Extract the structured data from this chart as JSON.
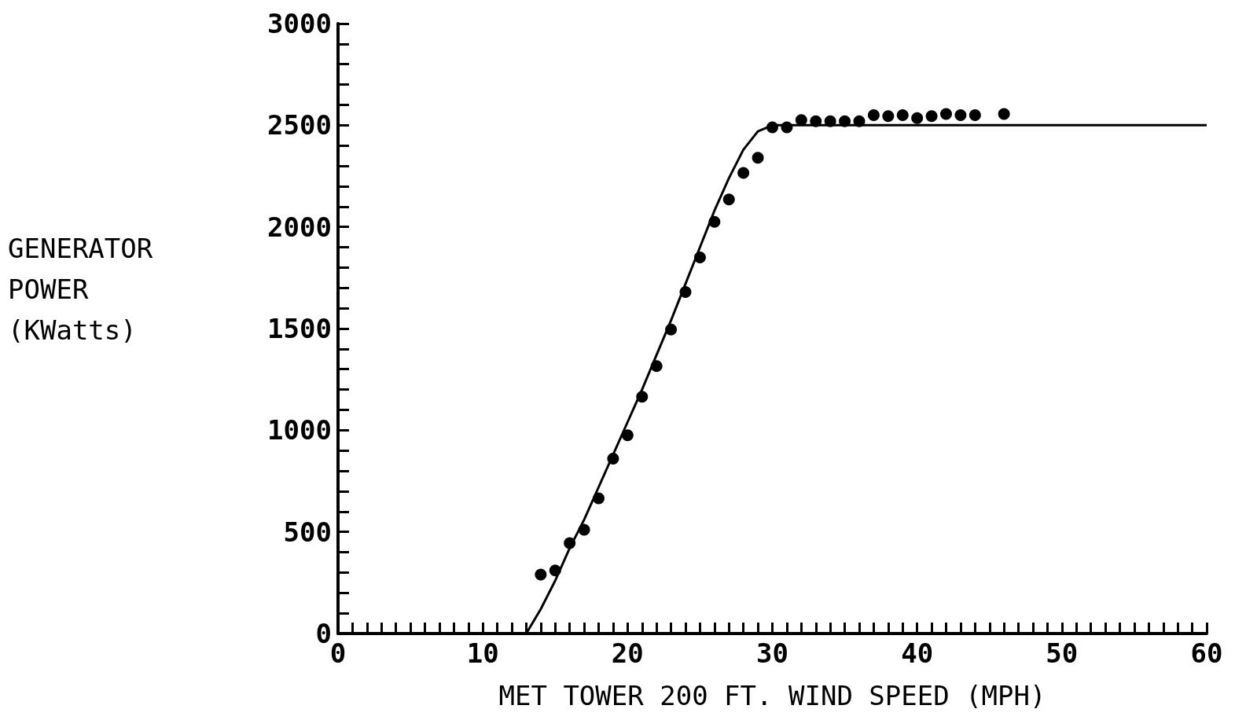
{
  "chart_data": {
    "type": "scatter",
    "xlabel": "MET TOWER 200 FT. WIND SPEED (MPH)",
    "ylabel": "GENERATOR POWER (KWatts)",
    "xlim": [
      0,
      60
    ],
    "ylim": [
      0,
      3000
    ],
    "xticks": [
      0,
      {
        "value": 1,
        "label": null
      },
      {
        "value": 2,
        "label": null
      },
      {
        "value": 3,
        "label": null
      },
      {
        "value": 4,
        "label": null
      },
      {
        "value": 5,
        "label": null
      },
      {
        "value": 6,
        "label": null
      },
      {
        "value": 7,
        "label": null
      },
      {
        "value": 8,
        "label": null
      },
      {
        "value": 9,
        "label": null
      },
      10,
      {
        "value": 11,
        "label": null
      },
      {
        "value": 12,
        "label": null
      },
      {
        "value": 13,
        "label": null
      },
      {
        "value": 14,
        "label": null
      },
      {
        "value": 15,
        "label": null
      },
      {
        "value": 16,
        "label": null
      },
      {
        "value": 17,
        "label": null
      },
      {
        "value": 18,
        "label": null
      },
      {
        "value": 19,
        "label": null
      },
      20,
      {
        "value": 21,
        "label": null
      },
      {
        "value": 22,
        "label": null
      },
      {
        "value": 23,
        "label": null
      },
      {
        "value": 24,
        "label": null
      },
      {
        "value": 25,
        "label": null
      },
      {
        "value": 26,
        "label": null
      },
      {
        "value": 27,
        "label": null
      },
      {
        "value": 28,
        "label": null
      },
      {
        "value": 29,
        "label": null
      },
      30,
      {
        "value": 31,
        "label": null
      },
      {
        "value": 32,
        "label": null
      },
      {
        "value": 33,
        "label": null
      },
      {
        "value": 34,
        "label": null
      },
      {
        "value": 35,
        "label": null
      },
      {
        "value": 36,
        "label": null
      },
      {
        "value": 37,
        "label": null
      },
      {
        "value": 38,
        "label": null
      },
      {
        "value": 39,
        "label": null
      },
      40,
      {
        "value": 41,
        "label": null
      },
      {
        "value": 42,
        "label": null
      },
      {
        "value": 43,
        "label": null
      },
      {
        "value": 44,
        "label": null
      },
      {
        "value": 45,
        "label": null
      },
      {
        "value": 46,
        "label": null
      },
      {
        "value": 47,
        "label": null
      },
      {
        "value": 48,
        "label": null
      },
      {
        "value": 49,
        "label": null
      },
      50,
      {
        "value": 51,
        "label": null
      },
      {
        "value": 52,
        "label": null
      },
      {
        "value": 53,
        "label": null
      },
      {
        "value": 54,
        "label": null
      },
      {
        "value": 55,
        "label": null
      },
      {
        "value": 56,
        "label": null
      },
      {
        "value": 57,
        "label": null
      },
      {
        "value": 58,
        "label": null
      },
      {
        "value": 59,
        "label": null
      },
      60
    ],
    "yticks": [
      0,
      {
        "value": 100,
        "label": null
      },
      {
        "value": 200,
        "label": null
      },
      {
        "value": 300,
        "label": null
      },
      {
        "value": 400,
        "label": null
      },
      500,
      {
        "value": 600,
        "label": null
      },
      {
        "value": 700,
        "label": null
      },
      {
        "value": 800,
        "label": null
      },
      {
        "value": 900,
        "label": null
      },
      1000,
      {
        "value": 1100,
        "label": null
      },
      {
        "value": 1200,
        "label": null
      },
      {
        "value": 1300,
        "label": null
      },
      {
        "value": 1400,
        "label": null
      },
      1500,
      {
        "value": 1600,
        "label": null
      },
      {
        "value": 1700,
        "label": null
      },
      {
        "value": 1800,
        "label": null
      },
      {
        "value": 1900,
        "label": null
      },
      2000,
      {
        "value": 2100,
        "label": null
      },
      {
        "value": 2200,
        "label": null
      },
      {
        "value": 2300,
        "label": null
      },
      {
        "value": 2400,
        "label": null
      },
      2500,
      {
        "value": 2600,
        "label": null
      },
      {
        "value": 2700,
        "label": null
      },
      {
        "value": 2800,
        "label": null
      },
      {
        "value": 2900,
        "label": null
      },
      3000
    ],
    "grid": false,
    "marker": "circle",
    "series": [
      {
        "color": "#000000",
        "x": [
          14,
          15,
          16,
          17,
          18,
          19,
          20,
          21,
          22,
          23,
          24,
          25,
          26,
          27,
          28,
          29,
          30,
          31,
          32,
          33,
          34,
          35,
          36,
          37,
          38,
          39,
          40,
          41,
          42,
          43,
          44,
          46
        ],
        "values": [
          290,
          310,
          445,
          510,
          665,
          860,
          975,
          1165,
          1315,
          1495,
          1680,
          1850,
          2025,
          2135,
          2265,
          2340,
          2490,
          2490,
          2525,
          2520,
          2520,
          2520,
          2520,
          2550,
          2545,
          2550,
          2535,
          2545,
          2555,
          2550,
          2550,
          2555
        ]
      },
      {
        "type": "line",
        "color": "#000000",
        "marker": "none",
        "x": [
          13,
          14,
          15,
          16,
          17,
          18,
          19,
          20,
          21,
          22,
          23,
          24,
          25,
          26,
          27,
          28,
          29,
          30,
          60
        ],
        "values": [
          0,
          120,
          260,
          420,
          560,
          720,
          880,
          1040,
          1200,
          1370,
          1540,
          1720,
          1900,
          2080,
          2240,
          2380,
          2470,
          2500,
          2500
        ]
      }
    ]
  }
}
